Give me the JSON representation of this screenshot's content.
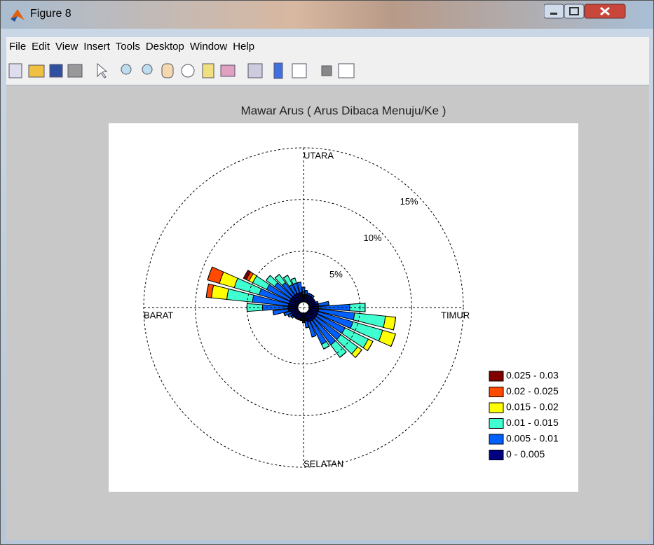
{
  "window": {
    "title": "Figure 8",
    "menu": [
      "File",
      "Edit",
      "View",
      "Insert",
      "Tools",
      "Desktop",
      "Window",
      "Help"
    ]
  },
  "chart_data": {
    "type": "windrose",
    "title": "Mawar Arus ( Arus Dibaca Menuju/Ke )",
    "compass": [
      "UTARA",
      "TIMUR",
      "SELATAN",
      "BARAT"
    ],
    "directions": [
      0,
      10,
      20,
      30,
      40,
      50,
      60,
      70,
      80,
      90,
      100,
      110,
      120,
      130,
      140,
      150,
      160,
      170,
      180,
      190,
      200,
      210,
      220,
      230,
      240,
      250,
      260,
      270,
      280,
      290,
      300,
      310,
      320,
      330,
      340,
      350
    ],
    "rlim": [
      0,
      15
    ],
    "rticks": [
      {
        "value": 5,
        "label": "5%"
      },
      {
        "value": 10,
        "label": "10%"
      },
      {
        "value": 15,
        "label": "15%"
      }
    ],
    "series": [
      {
        "name": "0.025 - 0.03",
        "color": "#800000",
        "values": [
          0,
          0,
          0,
          0,
          0,
          0,
          0,
          0,
          0,
          0,
          0,
          0,
          0,
          0,
          0,
          0,
          0,
          0,
          0,
          0,
          0,
          0,
          0,
          0,
          0,
          0,
          0,
          0,
          0,
          0,
          0.3,
          0,
          0,
          0,
          0,
          0
        ]
      },
      {
        "name": "0.02 - 0.025",
        "color": "#ff4a00",
        "values": [
          0,
          0,
          0,
          0,
          0,
          0,
          0,
          0,
          0,
          0,
          0,
          0,
          0,
          0,
          0,
          0,
          0,
          0,
          0,
          0,
          0,
          0,
          0,
          0,
          0,
          0,
          0,
          0,
          0.5,
          1.2,
          0.3,
          0,
          0,
          0,
          0,
          0
        ]
      },
      {
        "name": "0.015 - 0.02",
        "color": "#ffff00",
        "values": [
          0,
          0,
          0,
          0,
          0,
          0,
          0,
          0,
          0,
          0,
          1,
          1.3,
          0.5,
          0.5,
          0,
          0,
          0,
          0,
          0,
          0,
          0,
          0,
          0,
          0,
          0,
          0,
          0,
          0,
          1.5,
          1.5,
          0.4,
          0,
          0,
          0,
          0,
          0
        ]
      },
      {
        "name": "0.01 - 0.015",
        "color": "#40ffd0",
        "values": [
          0,
          0,
          0,
          0,
          0,
          0,
          0,
          0,
          0,
          1.5,
          3,
          3,
          2.5,
          2,
          1.5,
          0.5,
          0,
          0,
          0,
          0,
          0,
          0,
          0,
          0,
          0,
          0,
          0,
          1.5,
          2.5,
          2.5,
          1.5,
          1,
          1,
          1,
          0.5,
          0
        ]
      },
      {
        "name": "0.005 - 0.01",
        "color": "#0060ff",
        "values": [
          0.7,
          0.4,
          0.2,
          0.2,
          0.2,
          0,
          0,
          0.2,
          1,
          3,
          3.5,
          3.5,
          3,
          3,
          3,
          2.5,
          1.5,
          0.7,
          0.2,
          0,
          0,
          0,
          0,
          0.2,
          0.4,
          0.7,
          1.5,
          2.5,
          3.5,
          3,
          2.5,
          2,
          1.5,
          1,
          1,
          1
        ]
      },
      {
        "name": "0 - 0.005",
        "color": "#000080",
        "values": [
          0.8,
          0.8,
          0.8,
          0.8,
          0.8,
          0.8,
          0.8,
          0.8,
          1,
          1,
          1,
          1,
          1,
          1,
          1,
          1,
          1,
          0.8,
          0.8,
          0.8,
          0.8,
          0.8,
          0.8,
          0.8,
          0.8,
          0.8,
          1,
          1,
          1,
          1,
          1,
          1,
          1,
          1,
          1,
          1
        ]
      }
    ]
  }
}
